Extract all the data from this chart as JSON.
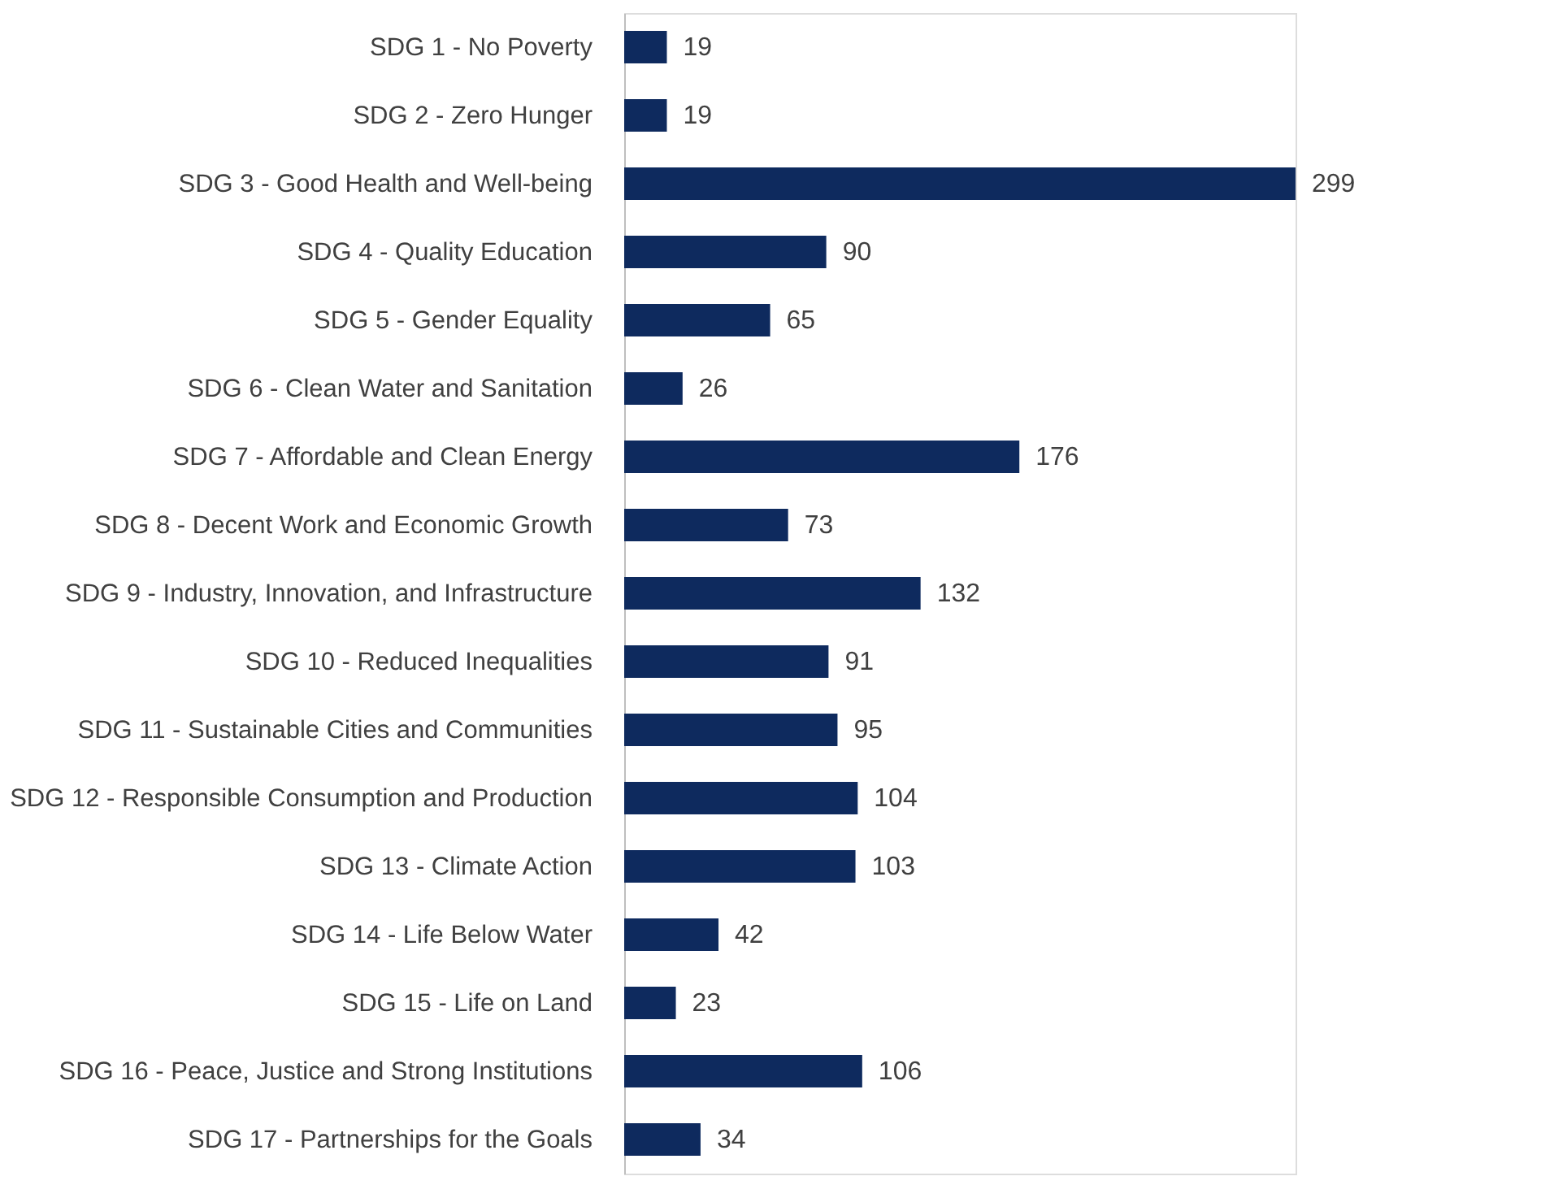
{
  "chart_data": {
    "type": "bar",
    "orientation": "horizontal",
    "data_labels": true,
    "color": "#0e2a5e",
    "categories": [
      "SDG 1 - No Poverty",
      "SDG 2 - Zero Hunger",
      "SDG 3 - Good Health and Well-being",
      "SDG 4 - Quality Education",
      "SDG 5 - Gender Equality",
      "SDG 6 - Clean Water and Sanitation",
      "SDG 7 - Affordable and Clean Energy",
      "SDG 8 - Decent Work and Economic Growth",
      "SDG 9 - Industry, Innovation, and Infrastructure",
      "SDG 10 - Reduced Inequalities",
      "SDG 11 - Sustainable Cities and Communities",
      "SDG 12 - Responsible Consumption and Production",
      "SDG 13 - Climate Action",
      "SDG 14 - Life Below Water",
      "SDG 15 - Life on Land",
      "SDG 16 - Peace, Justice and Strong Institutions",
      "SDG 17 - Partnerships for the Goals"
    ],
    "values": [
      19,
      19,
      299,
      90,
      65,
      26,
      176,
      73,
      132,
      91,
      95,
      104,
      103,
      42,
      23,
      106,
      34
    ],
    "tick_labels": "y"
  }
}
